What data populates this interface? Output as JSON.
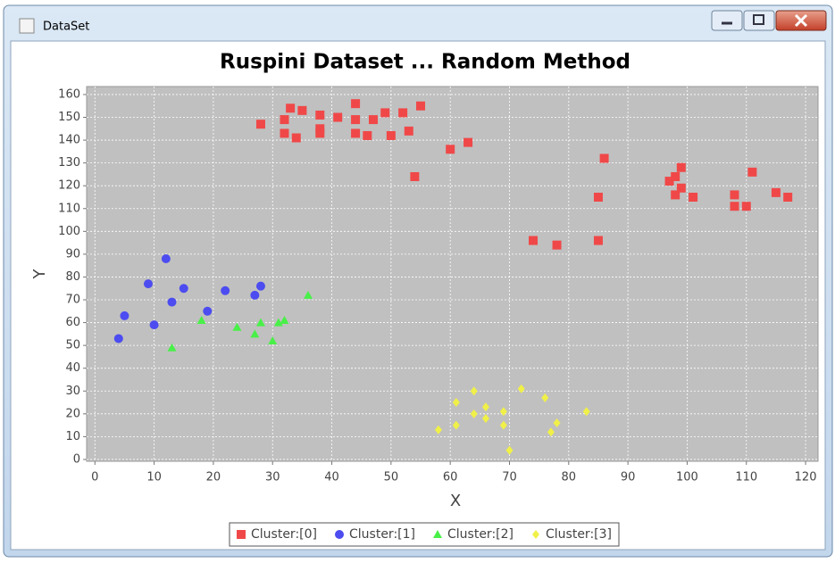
{
  "window": {
    "title": "DataSet"
  },
  "chart_data": {
    "type": "scatter",
    "title": "Ruspini  Dataset ... Random  Method",
    "x_label": "X",
    "y_label": "Y",
    "xlim": [
      -1.4,
      122.1
    ],
    "ylim": [
      -0.8,
      163.5
    ],
    "xticks": [
      0,
      10,
      20,
      30,
      40,
      50,
      60,
      70,
      80,
      90,
      100,
      110,
      120
    ],
    "yticks": [
      0,
      10,
      20,
      30,
      40,
      50,
      60,
      70,
      80,
      90,
      100,
      110,
      120,
      130,
      140,
      150,
      160
    ],
    "grid": true,
    "legend": "bottom",
    "series": [
      {
        "name": "Cluster:[0]",
        "color": "#f04848",
        "marker": "square",
        "x": [
          28,
          32,
          32,
          33,
          34,
          35,
          38,
          38,
          38,
          41,
          44,
          44,
          44,
          46,
          47,
          49,
          50,
          52,
          53,
          54,
          55,
          60,
          63,
          74,
          78,
          85,
          85,
          86,
          97,
          98,
          98,
          99,
          99,
          101,
          108,
          108,
          110,
          111,
          115,
          117
        ],
        "values": [
          147,
          149,
          143,
          154,
          141,
          153,
          151,
          145,
          143,
          150,
          156,
          149,
          143,
          142,
          149,
          152,
          142,
          152,
          144,
          124,
          155,
          136,
          139,
          96,
          94,
          115,
          96,
          132,
          122,
          124,
          116,
          128,
          119,
          115,
          116,
          111,
          111,
          126,
          117,
          115
        ]
      },
      {
        "name": "Cluster:[1]",
        "color": "#4c4cf0",
        "marker": "circle",
        "x": [
          4,
          5,
          9,
          10,
          12,
          13,
          15,
          19,
          22,
          27,
          28
        ],
        "values": [
          53,
          63,
          77,
          59,
          88,
          69,
          75,
          65,
          74,
          72,
          76
        ]
      },
      {
        "name": "Cluster:[2]",
        "color": "#48f048",
        "marker": "triangle",
        "x": [
          13,
          18,
          24,
          27,
          28,
          30,
          31,
          32,
          36
        ],
        "values": [
          49,
          61,
          58,
          55,
          60,
          52,
          60,
          61,
          72
        ]
      },
      {
        "name": "Cluster:[3]",
        "color": "#f0f048",
        "marker": "diamond",
        "x": [
          58,
          61,
          61,
          64,
          64,
          66,
          66,
          69,
          69,
          70,
          72,
          76,
          77,
          78,
          83
        ],
        "values": [
          13,
          15,
          25,
          20,
          30,
          23,
          18,
          21,
          15,
          4,
          31,
          27,
          12,
          16,
          21
        ]
      }
    ]
  }
}
